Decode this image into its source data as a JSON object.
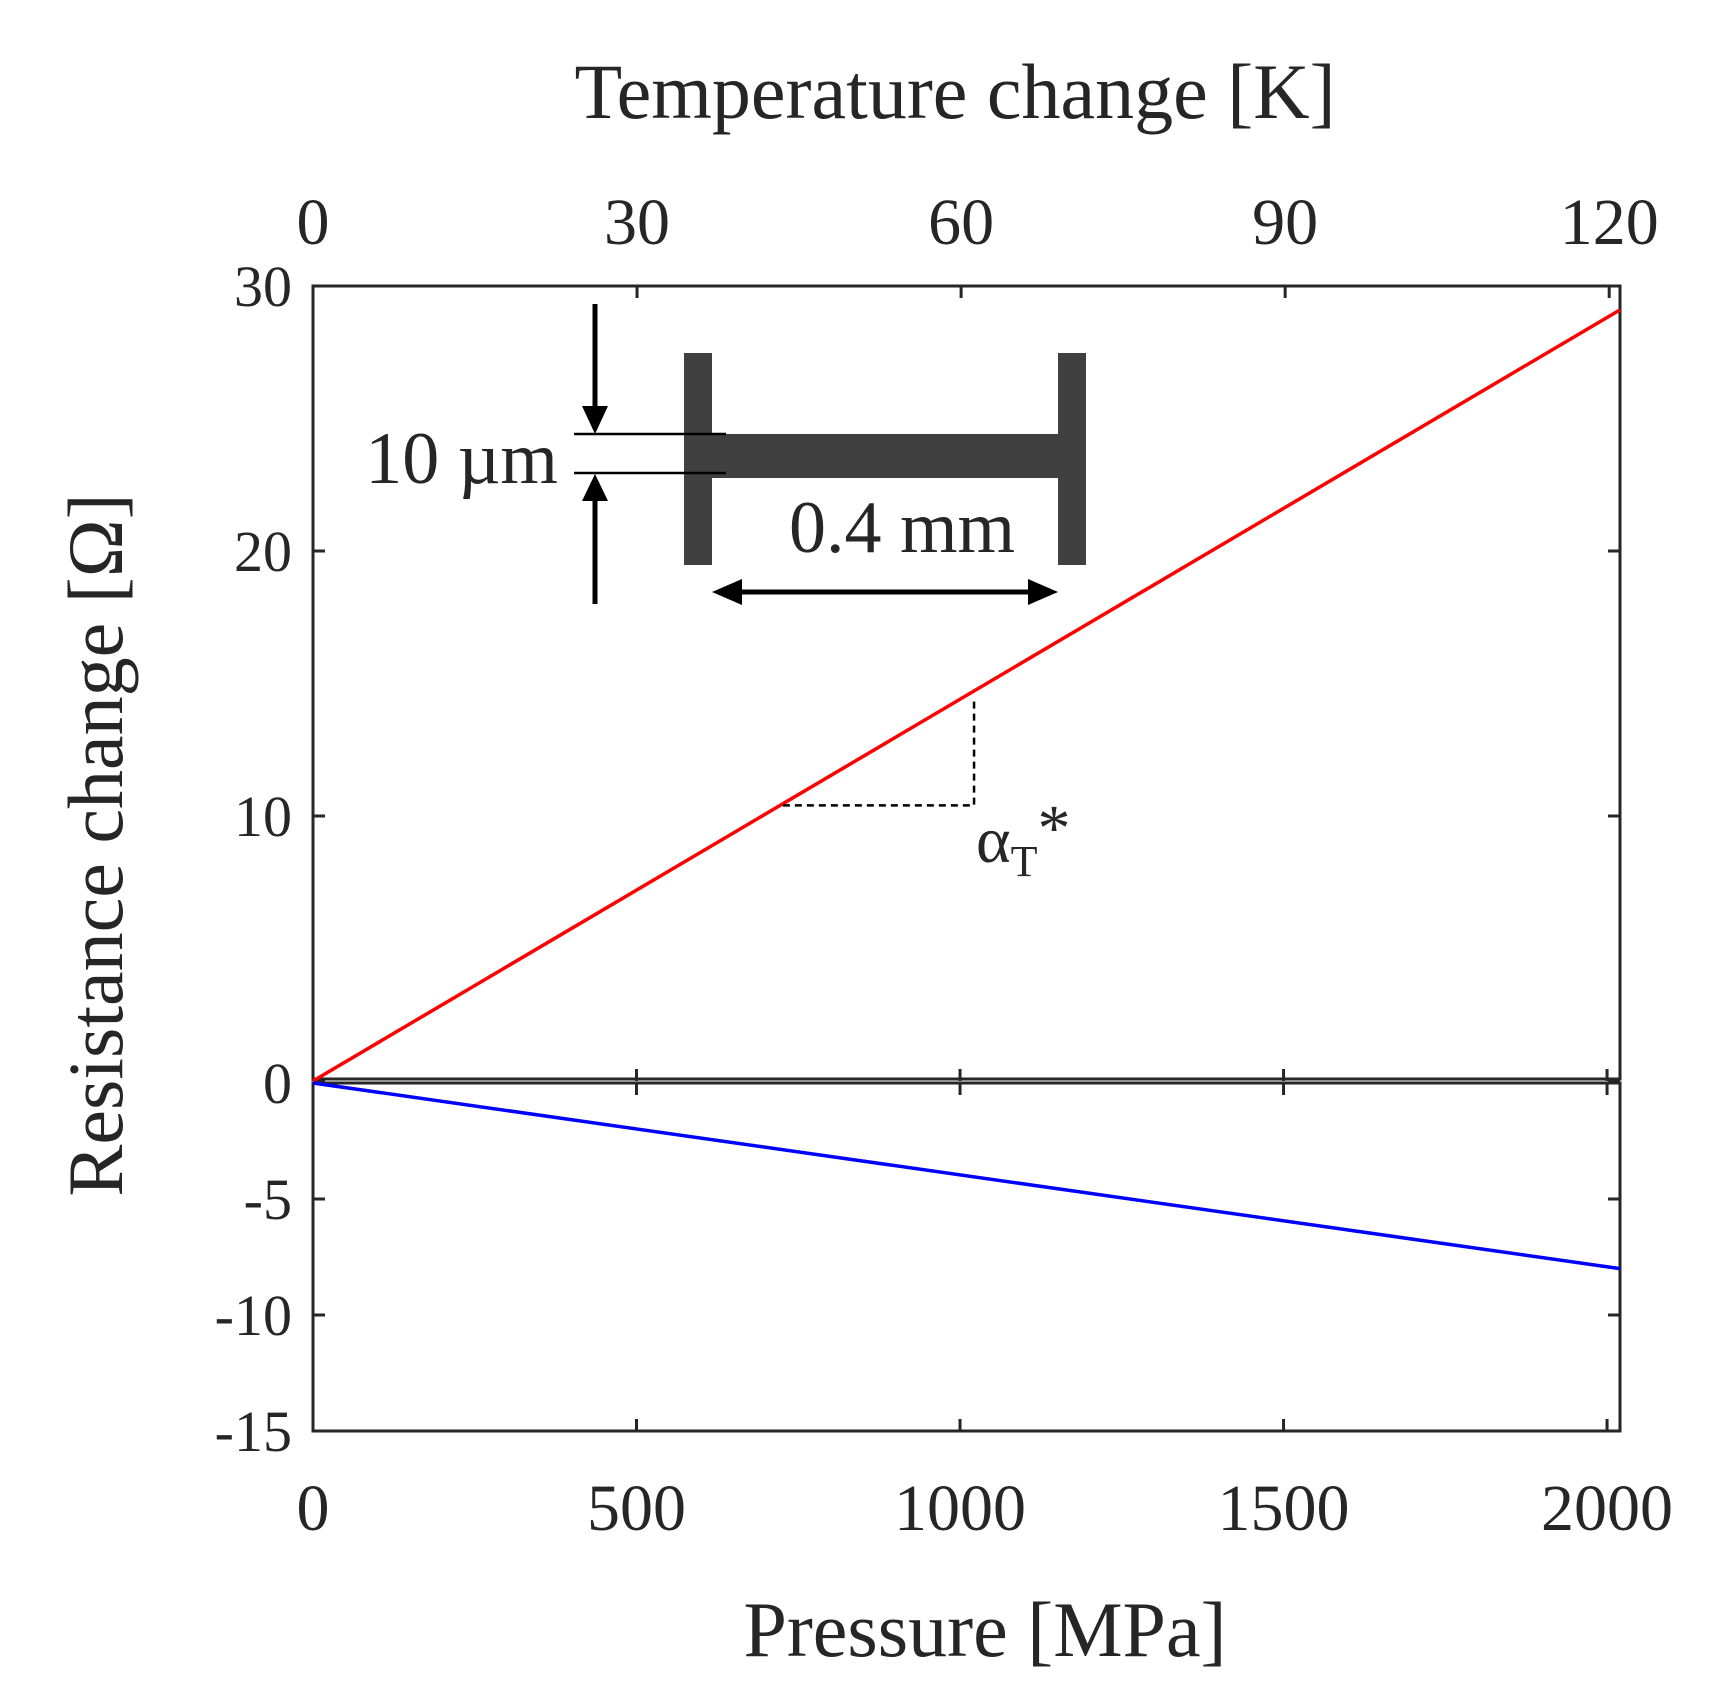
{
  "chart_data": [
    {
      "type": "line",
      "panel": "upper",
      "title": "",
      "xlabel": "Temperature change [K]",
      "ylabel": "Resistance change [Ω]",
      "xlim": [
        0,
        121
      ],
      "ylim": [
        0,
        30
      ],
      "x_ticks": [
        0,
        30,
        60,
        90,
        120
      ],
      "y_ticks": [
        0,
        10,
        20,
        30
      ],
      "x_tick_labels": [
        "0",
        "30",
        "60",
        "90",
        "120"
      ],
      "y_tick_labels": [
        "0",
        "10",
        "20",
        "30"
      ],
      "grid": false,
      "series": [
        {
          "name": "temperature",
          "color": "#ff0000",
          "x": [
            0,
            121
          ],
          "y": [
            0,
            29.1
          ]
        }
      ],
      "annotation": {
        "slope_label_main": "α",
        "slope_label_sub": "T",
        "slope_label_suffix": "*",
        "slope_triangle_x": [
          43.5,
          61.2
        ],
        "slope_triangle_y": [
          10.4,
          14.5
        ]
      }
    },
    {
      "type": "line",
      "panel": "lower",
      "title": "",
      "xlabel": "Pressure [MPa]",
      "ylabel": "Resistance change [Ω]",
      "xlim": [
        0,
        2020
      ],
      "ylim": [
        -15,
        0
      ],
      "x_ticks": [
        0,
        500,
        1000,
        1500,
        2000
      ],
      "y_ticks": [
        0,
        -5,
        -10,
        -15
      ],
      "x_tick_labels": [
        "0",
        "500",
        "1000",
        "1500",
        "2000"
      ],
      "y_tick_labels": [
        "0",
        "-5",
        "-10",
        "-15"
      ],
      "grid": false,
      "series": [
        {
          "name": "pressure",
          "color": "#0000ff",
          "x": [
            0,
            2020
          ],
          "y": [
            0,
            -8.0
          ]
        }
      ]
    }
  ],
  "labels": {
    "top_axis_title": "Temperature change [K]",
    "bottom_axis_title": "Pressure [MPa]",
    "y_axis_title": "Resistance change [Ω]",
    "inset_thickness": "10 µm",
    "inset_length": "0.4 mm"
  },
  "colors": {
    "axis": "#262626",
    "temperature_line": "#ff0000",
    "pressure_line": "#0000ff",
    "inset_shape": "#404040",
    "arrow": "#000000"
  }
}
